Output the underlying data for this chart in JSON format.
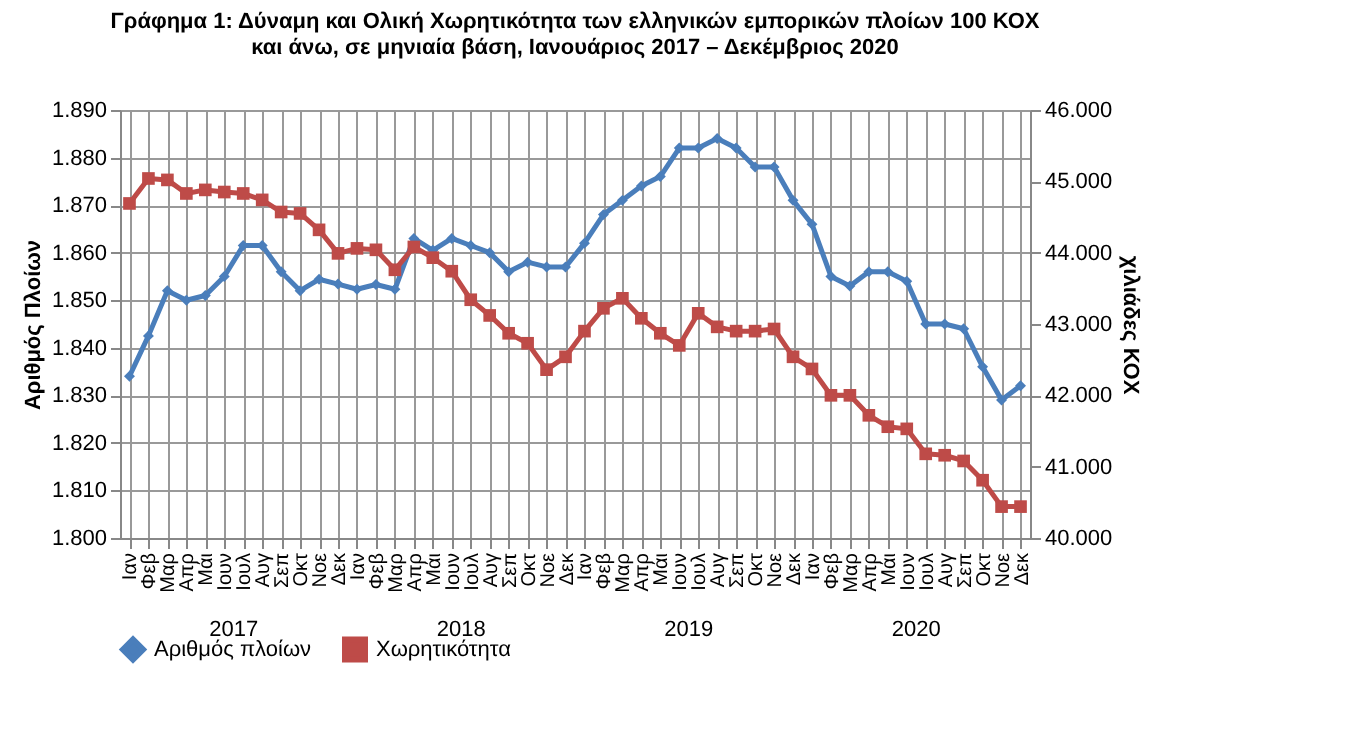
{
  "chart_data": {
    "type": "line",
    "title": [
      "Γράφημα 1: Δύναμη και Ολική Χωρητικότητα των ελληνικών εμπορικών πλοίων 100 ΚΟΧ",
      "και άνω, σε μηνιαία βάση, Ιανουάριος 2017 – Δεκέμβριος 2020"
    ],
    "ylabel": "Αριθμός Πλοίων",
    "y2label": "χιλιάδες ΚΟΧ",
    "categories": [
      "Ιαν",
      "Φεβ",
      "Μαρ",
      "Απρ",
      "Μάι",
      "Ιουν",
      "Ιουλ",
      "Αυγ",
      "Σεπ",
      "Οκτ",
      "Νοε",
      "Δεκ",
      "Ιαν",
      "Φεβ",
      "Μαρ",
      "Απρ",
      "Μάι",
      "Ιουν",
      "Ιουλ",
      "Αυγ",
      "Σεπ",
      "Οκτ",
      "Νοε",
      "Δεκ",
      "Ιαν",
      "Φεβ",
      "Μαρ",
      "Απρ",
      "Μάι",
      "Ιουν",
      "Ιουλ",
      "Αυγ",
      "Σεπ",
      "Οκτ",
      "Νοε",
      "Δεκ",
      "Ιαν",
      "Φεβ",
      "Μαρ",
      "Απρ",
      "Μάι",
      "Ιουν",
      "Ιουλ",
      "Αυγ",
      "Σεπ",
      "Οκτ",
      "Νοε",
      "Δεκ"
    ],
    "annotations": [
      "2017",
      "2018",
      "2019",
      "2020"
    ],
    "series": [
      {
        "name": "Αριθμός πλοίων",
        "color": "#4a7ebb",
        "axis": "y",
        "marker": "diamond",
        "values": [
          1834,
          1842.5,
          1852,
          1850,
          1851,
          1855,
          1861.5,
          1861.5,
          1856,
          1852,
          1854.4,
          1853.4,
          1852.3,
          1853.3,
          1852.3,
          1863,
          1860.5,
          1863,
          1861.5,
          1860,
          1856,
          1858,
          1857,
          1857,
          1862,
          1868,
          1871,
          1874,
          1876,
          1882,
          1882,
          1884,
          1882,
          1878,
          1878,
          1871,
          1866,
          1855,
          1853,
          1856,
          1856,
          1854,
          1845,
          1845,
          1844,
          1836,
          1829,
          1832
        ]
      },
      {
        "name": "Χωρητικότητα",
        "color": "#be4b48",
        "axis": "y2",
        "marker": "square",
        "values": [
          44690,
          45040,
          45020,
          44830,
          44880,
          44850,
          44830,
          44740,
          44570,
          44550,
          44320,
          43990,
          44060,
          44040,
          43760,
          44080,
          43930,
          43740,
          43340,
          43120,
          42870,
          42730,
          42360,
          42540,
          42900,
          43220,
          43360,
          43080,
          42870,
          42700,
          43150,
          42960,
          42900,
          42900,
          42930,
          42540,
          42370,
          42000,
          42000,
          41720,
          41560,
          41530,
          41180,
          41160,
          41080,
          40810,
          40440,
          40440
        ]
      }
    ],
    "ylim": [
      1800,
      1890
    ],
    "yticks": [
      {
        "value": 1800,
        "label": "1.800"
      },
      {
        "value": 1810,
        "label": "1.810"
      },
      {
        "value": 1820,
        "label": "1.820"
      },
      {
        "value": 1830,
        "label": "1.830"
      },
      {
        "value": 1840,
        "label": "1.840"
      },
      {
        "value": 1850,
        "label": "1.850"
      },
      {
        "value": 1860,
        "label": "1.860"
      },
      {
        "value": 1870,
        "label": "1.870"
      },
      {
        "value": 1880,
        "label": "1.880"
      },
      {
        "value": 1890,
        "label": "1.890"
      }
    ],
    "y2lim": [
      40000,
      46000
    ],
    "y2ticks": [
      {
        "value": 40000,
        "label": "40.000"
      },
      {
        "value": 41000,
        "label": "41.000"
      },
      {
        "value": 42000,
        "label": "42.000"
      },
      {
        "value": 43000,
        "label": "43.000"
      },
      {
        "value": 44000,
        "label": "44.000"
      },
      {
        "value": 45000,
        "label": "45.000"
      },
      {
        "value": 46000,
        "label": "46.000"
      }
    ],
    "grid": true,
    "legend": "bottom",
    "line_style": "solid"
  }
}
